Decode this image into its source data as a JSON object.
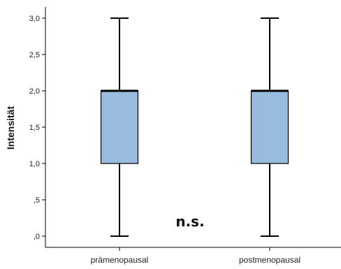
{
  "chart_data": {
    "type": "box",
    "ylabel": "Intensität",
    "xlabel": "",
    "ylim": [
      0,
      3
    ],
    "yticks": [
      {
        "value": 0,
        "label": ",0"
      },
      {
        "value": 0.5,
        "label": ",5"
      },
      {
        "value": 1,
        "label": "1,0"
      },
      {
        "value": 1.5,
        "label": "1,5"
      },
      {
        "value": 2,
        "label": "2,0"
      },
      {
        "value": 2.5,
        "label": "2,5"
      },
      {
        "value": 3,
        "label": "3,0"
      }
    ],
    "categories": [
      "prämenopausal",
      "postmenopausal"
    ],
    "boxes": [
      {
        "category": "prämenopausal",
        "min": 0,
        "q1": 1,
        "median": 2,
        "q3": 2,
        "max": 3
      },
      {
        "category": "postmenopausal",
        "min": 0,
        "q1": 1,
        "median": 2,
        "q3": 2,
        "max": 3
      }
    ],
    "annotation": "n.s.",
    "colors": {
      "box_fill": "#99bbdd",
      "stroke": "#000000"
    },
    "grid": false
  }
}
